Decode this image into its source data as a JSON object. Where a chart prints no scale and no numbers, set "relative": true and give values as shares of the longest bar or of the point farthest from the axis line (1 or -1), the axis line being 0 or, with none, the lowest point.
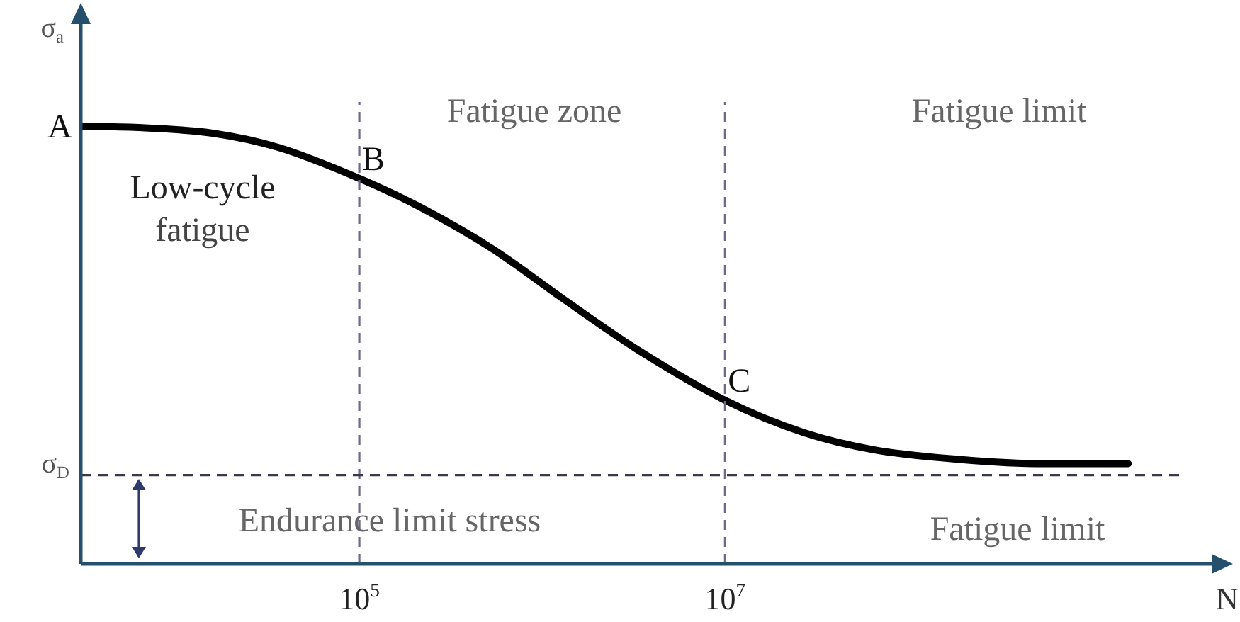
{
  "chart_data": {
    "type": "line",
    "relative": true,
    "log": "x",
    "xlabel": "N",
    "ylabel": "σ$_{a}$",
    "xlim": [
      3000,
      5000000000
    ],
    "xticks": [
      {
        "value": 100000,
        "label": "10$^{5}$"
      },
      {
        "value": 10000000,
        "label": "10$^{7}$"
      }
    ],
    "x": [
      3000,
      6500,
      16000,
      36000,
      100000,
      214000,
      540000,
      1300000,
      3200000,
      10000000,
      27000000,
      65000000,
      190000000,
      550000000,
      1600000000
    ],
    "series": [
      {
        "color": "#000000",
        "values": [
          1,
          0.997,
          0.984,
          0.952,
          0.881,
          0.816,
          0.719,
          0.606,
          0.494,
          0.374,
          0.3,
          0.261,
          0.239,
          0.229,
          0.229
        ]
      }
    ],
    "ref_lines": [
      {
        "axis": "x",
        "value": 100000,
        "label": null,
        "color": "#6e6a8e",
        "line_style": "dashed"
      },
      {
        "axis": "x",
        "value": 10000000,
        "label": null,
        "color": "#6e6a8e",
        "line_style": "dashed"
      },
      {
        "axis": "y",
        "value": 0.203,
        "label": "σ$_{D}$",
        "color": "#3a3a4a",
        "line_style": "dashed"
      }
    ],
    "annotations": [
      {
        "text": "A",
        "x": 3000,
        "y": 1
      },
      {
        "text": "B",
        "x": 100000,
        "y": 0.881
      },
      {
        "text": "C",
        "x": 10000000,
        "y": 0.374
      },
      "Low-cycle fatigue",
      "Fatigue zone",
      "Fatigue limit",
      "Endurance limit stress",
      "Fatigue limit"
    ],
    "grid": false,
    "legend": false,
    "marker": "none",
    "line_style": "solid"
  }
}
